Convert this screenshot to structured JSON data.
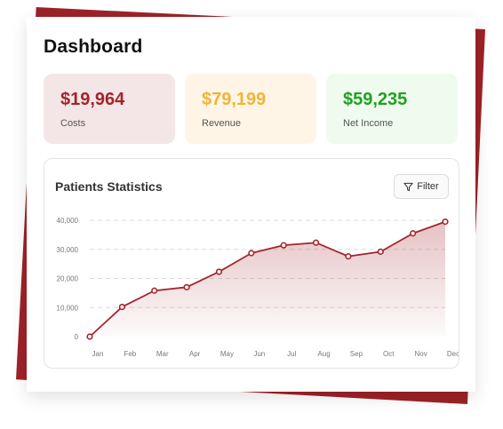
{
  "title": "Dashboard",
  "stats": [
    {
      "value": "$19,964",
      "label": "Costs"
    },
    {
      "value": "$79,199",
      "label": "Revenue"
    },
    {
      "value": "$59,235",
      "label": "Net Income"
    }
  ],
  "colors": {
    "brand": "#9e2228",
    "costs": "#a3242c",
    "revenue": "#f2b43a",
    "net_income": "#1fa21f"
  },
  "chart_panel": {
    "title": "Patients Statistics",
    "filter_label": "Filter",
    "filter_icon": "funnel-icon"
  },
  "chart_data": {
    "type": "area",
    "categories": [
      "Jan",
      "Feb",
      "Mar",
      "Apr",
      "May",
      "Jun",
      "Jul",
      "Aug",
      "Sep",
      "Oct",
      "Nov",
      "Dec"
    ],
    "values": [
      0,
      10200,
      15800,
      17000,
      22300,
      28700,
      31400,
      32300,
      27600,
      29200,
      35500,
      39500
    ],
    "y_ticks": [
      "0",
      "10,000",
      "20,000",
      "30,000",
      "40,000"
    ],
    "ylim": [
      0,
      40000
    ],
    "grid": true,
    "color": "#a3242c"
  }
}
